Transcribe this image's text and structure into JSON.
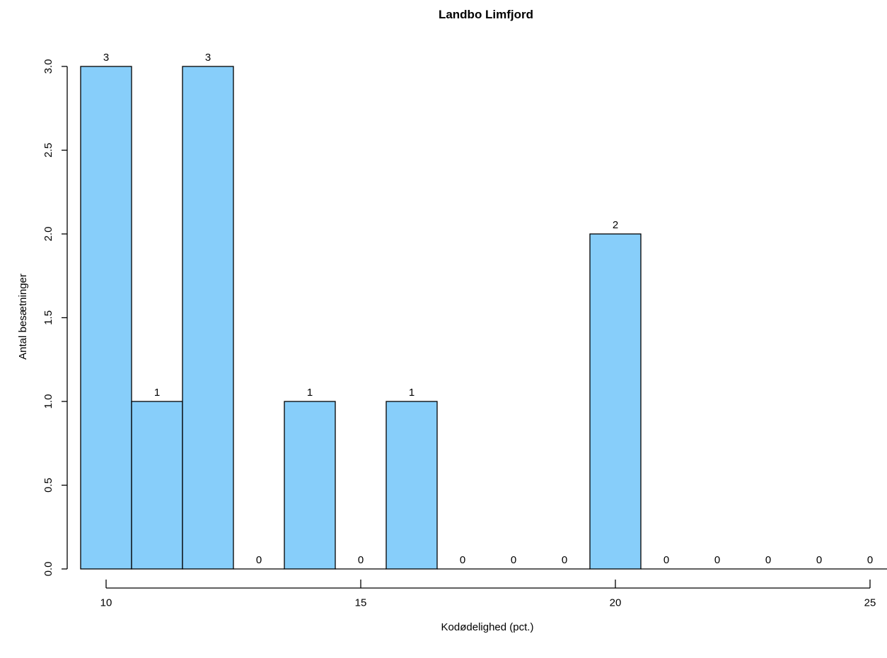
{
  "chart_data": {
    "type": "bar",
    "title": "Landbo Limfjord",
    "xlabel": "Kodødelighed (pct.)",
    "ylabel": "Antal besætninger",
    "x": [
      10,
      11,
      12,
      13,
      14,
      15,
      16,
      17,
      18,
      19,
      20,
      21,
      22,
      23,
      24,
      25
    ],
    "values": [
      3,
      1,
      3,
      0,
      1,
      0,
      1,
      0,
      0,
      0,
      2,
      0,
      0,
      0,
      0,
      0
    ],
    "bar_labels": [
      "3",
      "1",
      "3",
      "0",
      "1",
      "0",
      "1",
      "0",
      "0",
      "0",
      "2",
      "0",
      "0",
      "0",
      "0",
      "0"
    ],
    "xlim": [
      10,
      25
    ],
    "ylim": [
      0,
      3
    ],
    "x_ticks": [
      "10",
      "15",
      "20",
      "25"
    ],
    "y_ticks": [
      "0.0",
      "0.5",
      "1.0",
      "1.5",
      "2.0",
      "2.5",
      "3.0"
    ],
    "grid": false,
    "colors": {
      "bar_fill": "#87cefa",
      "bar_stroke": "#000000"
    }
  }
}
